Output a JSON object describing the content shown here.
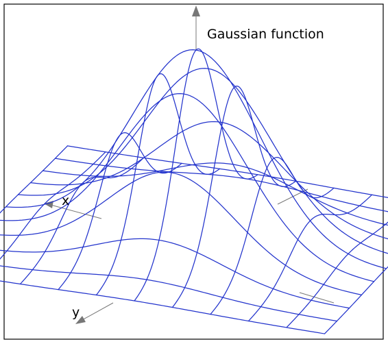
{
  "title": "Gaussian function",
  "axes": {
    "x_label": "x",
    "y_label": "y"
  },
  "colors": {
    "mesh": "#2233cc",
    "axis": "#777777",
    "frame": "#000000",
    "background": "#ffffff"
  },
  "grid": {
    "lines_per_direction": 11,
    "range": [
      -3,
      3
    ],
    "function": "exp(-(x^2 + y^2)/2)"
  }
}
